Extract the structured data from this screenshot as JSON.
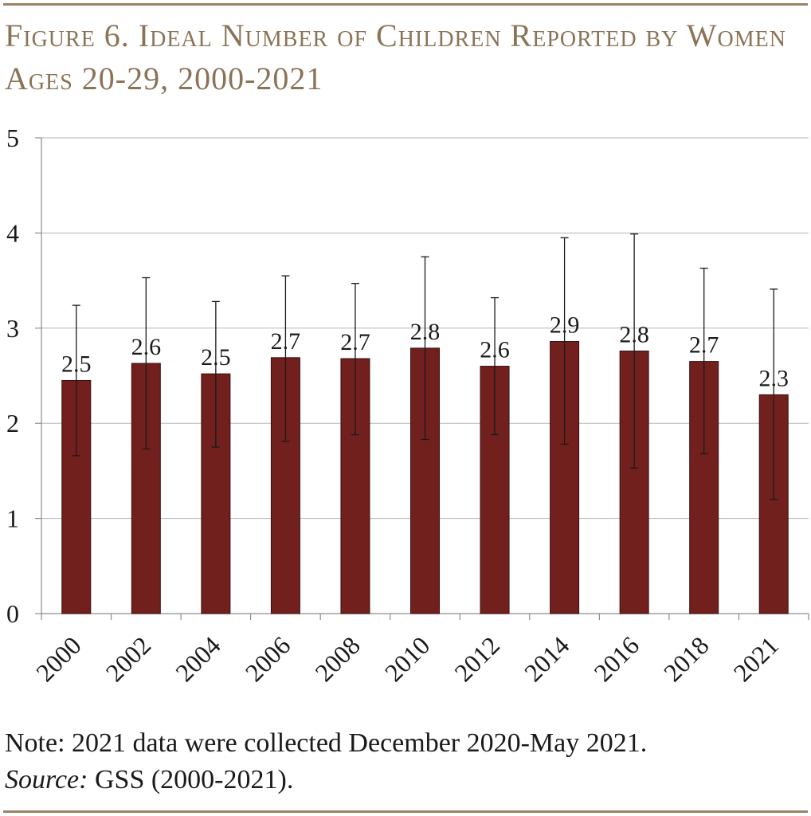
{
  "title": "Figure 6. Ideal Number of Children Reported by Women Ages 20-29, 2000-2021",
  "note": "Note: 2021 data were collected December 2020-May 2021.",
  "source_label": "Source:",
  "source_text": " GSS (2000-2021).",
  "colors": {
    "bar": "#71201e",
    "bar_edge": "#3a0f0e",
    "rule": "#9a8466",
    "title": "#8b7356",
    "grid": "#b5b5b5",
    "text": "#1a1a1a"
  },
  "chart_data": {
    "type": "bar",
    "title": "Figure 6. Ideal Number of Children Reported by Women Ages 20-29, 2000-2021",
    "xlabel": "",
    "ylabel": "",
    "ylim": [
      0,
      5
    ],
    "yticks": [
      0,
      1,
      2,
      3,
      4,
      5
    ],
    "grid": true,
    "categories": [
      "2000",
      "2002",
      "2004",
      "2006",
      "2008",
      "2010",
      "2012",
      "2014",
      "2016",
      "2018",
      "2021"
    ],
    "values": [
      2.45,
      2.63,
      2.52,
      2.69,
      2.68,
      2.79,
      2.6,
      2.86,
      2.76,
      2.65,
      2.3
    ],
    "data_labels": [
      "2.5",
      "2.6",
      "2.5",
      "2.7",
      "2.7",
      "2.8",
      "2.6",
      "2.9",
      "2.8",
      "2.7",
      "2.3"
    ],
    "error_low": [
      1.66,
      1.73,
      1.75,
      1.81,
      1.88,
      1.83,
      1.88,
      1.78,
      1.53,
      1.68,
      1.2
    ],
    "error_high": [
      3.24,
      3.53,
      3.28,
      3.55,
      3.47,
      3.75,
      3.32,
      3.95,
      3.99,
      3.63,
      3.41
    ]
  }
}
